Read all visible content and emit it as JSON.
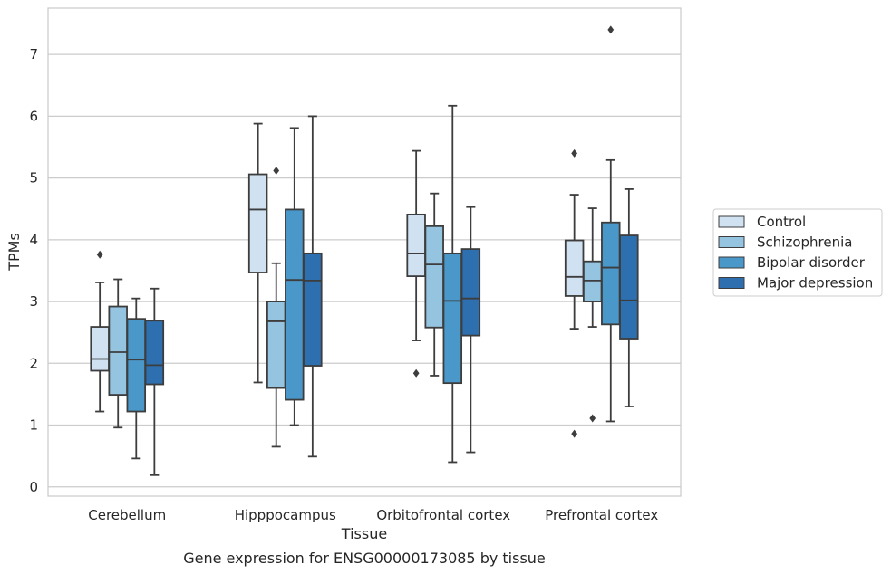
{
  "caption": "Gene expression for ENSG00000173085 by tissue",
  "chart_data": {
    "type": "boxplot",
    "xlabel": "Tissue",
    "ylabel": "TPMs",
    "ylim": [
      -0.15,
      7.75
    ],
    "yticks": [
      0,
      1,
      2,
      3,
      4,
      5,
      6,
      7
    ],
    "grid": true,
    "legend_position": "right",
    "categories": [
      "Cerebellum",
      "Hipppocampus",
      "Orbitofrontal cortex",
      "Prefrontal cortex"
    ],
    "series": [
      {
        "name": "Control",
        "color": "#d0e1f2",
        "boxes": [
          {
            "whislo": 1.22,
            "q1": 1.88,
            "med": 2.07,
            "q3": 2.59,
            "whishi": 3.31,
            "fliers": [
              3.76
            ]
          },
          {
            "whislo": 1.69,
            "q1": 3.47,
            "med": 4.49,
            "q3": 5.06,
            "whishi": 5.88,
            "fliers": []
          },
          {
            "whislo": 2.37,
            "q1": 3.41,
            "med": 3.78,
            "q3": 4.41,
            "whishi": 5.44,
            "fliers": [
              1.84
            ]
          },
          {
            "whislo": 2.56,
            "q1": 3.09,
            "med": 3.4,
            "q3": 3.99,
            "whishi": 4.73,
            "fliers": [
              5.4,
              0.86
            ]
          }
        ]
      },
      {
        "name": "Schizophrenia",
        "color": "#94c4df",
        "boxes": [
          {
            "whislo": 0.96,
            "q1": 1.49,
            "med": 2.18,
            "q3": 2.92,
            "whishi": 3.36,
            "fliers": []
          },
          {
            "whislo": 0.65,
            "q1": 1.6,
            "med": 2.68,
            "q3": 3.0,
            "whishi": 3.62,
            "fliers": [
              5.12
            ]
          },
          {
            "whislo": 1.8,
            "q1": 2.58,
            "med": 3.6,
            "q3": 4.22,
            "whishi": 4.75,
            "fliers": []
          },
          {
            "whislo": 2.59,
            "q1": 3.0,
            "med": 3.34,
            "q3": 3.65,
            "whishi": 4.51,
            "fliers": [
              1.11
            ]
          }
        ]
      },
      {
        "name": "Bipolar disorder",
        "color": "#4a98c9",
        "boxes": [
          {
            "whislo": 0.46,
            "q1": 1.22,
            "med": 2.06,
            "q3": 2.72,
            "whishi": 3.05,
            "fliers": []
          },
          {
            "whislo": 1.0,
            "q1": 1.41,
            "med": 3.35,
            "q3": 4.49,
            "whishi": 5.81,
            "fliers": []
          },
          {
            "whislo": 0.4,
            "q1": 1.68,
            "med": 3.01,
            "q3": 3.78,
            "whishi": 6.17,
            "fliers": []
          },
          {
            "whislo": 1.06,
            "q1": 2.63,
            "med": 3.55,
            "q3": 4.28,
            "whishi": 5.29,
            "fliers": [
              7.4
            ]
          }
        ]
      },
      {
        "name": "Major depression",
        "color": "#2e6fb0",
        "boxes": [
          {
            "whislo": 0.19,
            "q1": 1.66,
            "med": 1.97,
            "q3": 2.69,
            "whishi": 3.21,
            "fliers": []
          },
          {
            "whislo": 0.49,
            "q1": 1.96,
            "med": 3.34,
            "q3": 3.78,
            "whishi": 6.0,
            "fliers": []
          },
          {
            "whislo": 0.56,
            "q1": 2.45,
            "med": 3.05,
            "q3": 3.85,
            "whishi": 4.53,
            "fliers": []
          },
          {
            "whislo": 1.3,
            "q1": 2.4,
            "med": 3.02,
            "q3": 4.07,
            "whishi": 4.82,
            "fliers": []
          }
        ]
      }
    ]
  }
}
